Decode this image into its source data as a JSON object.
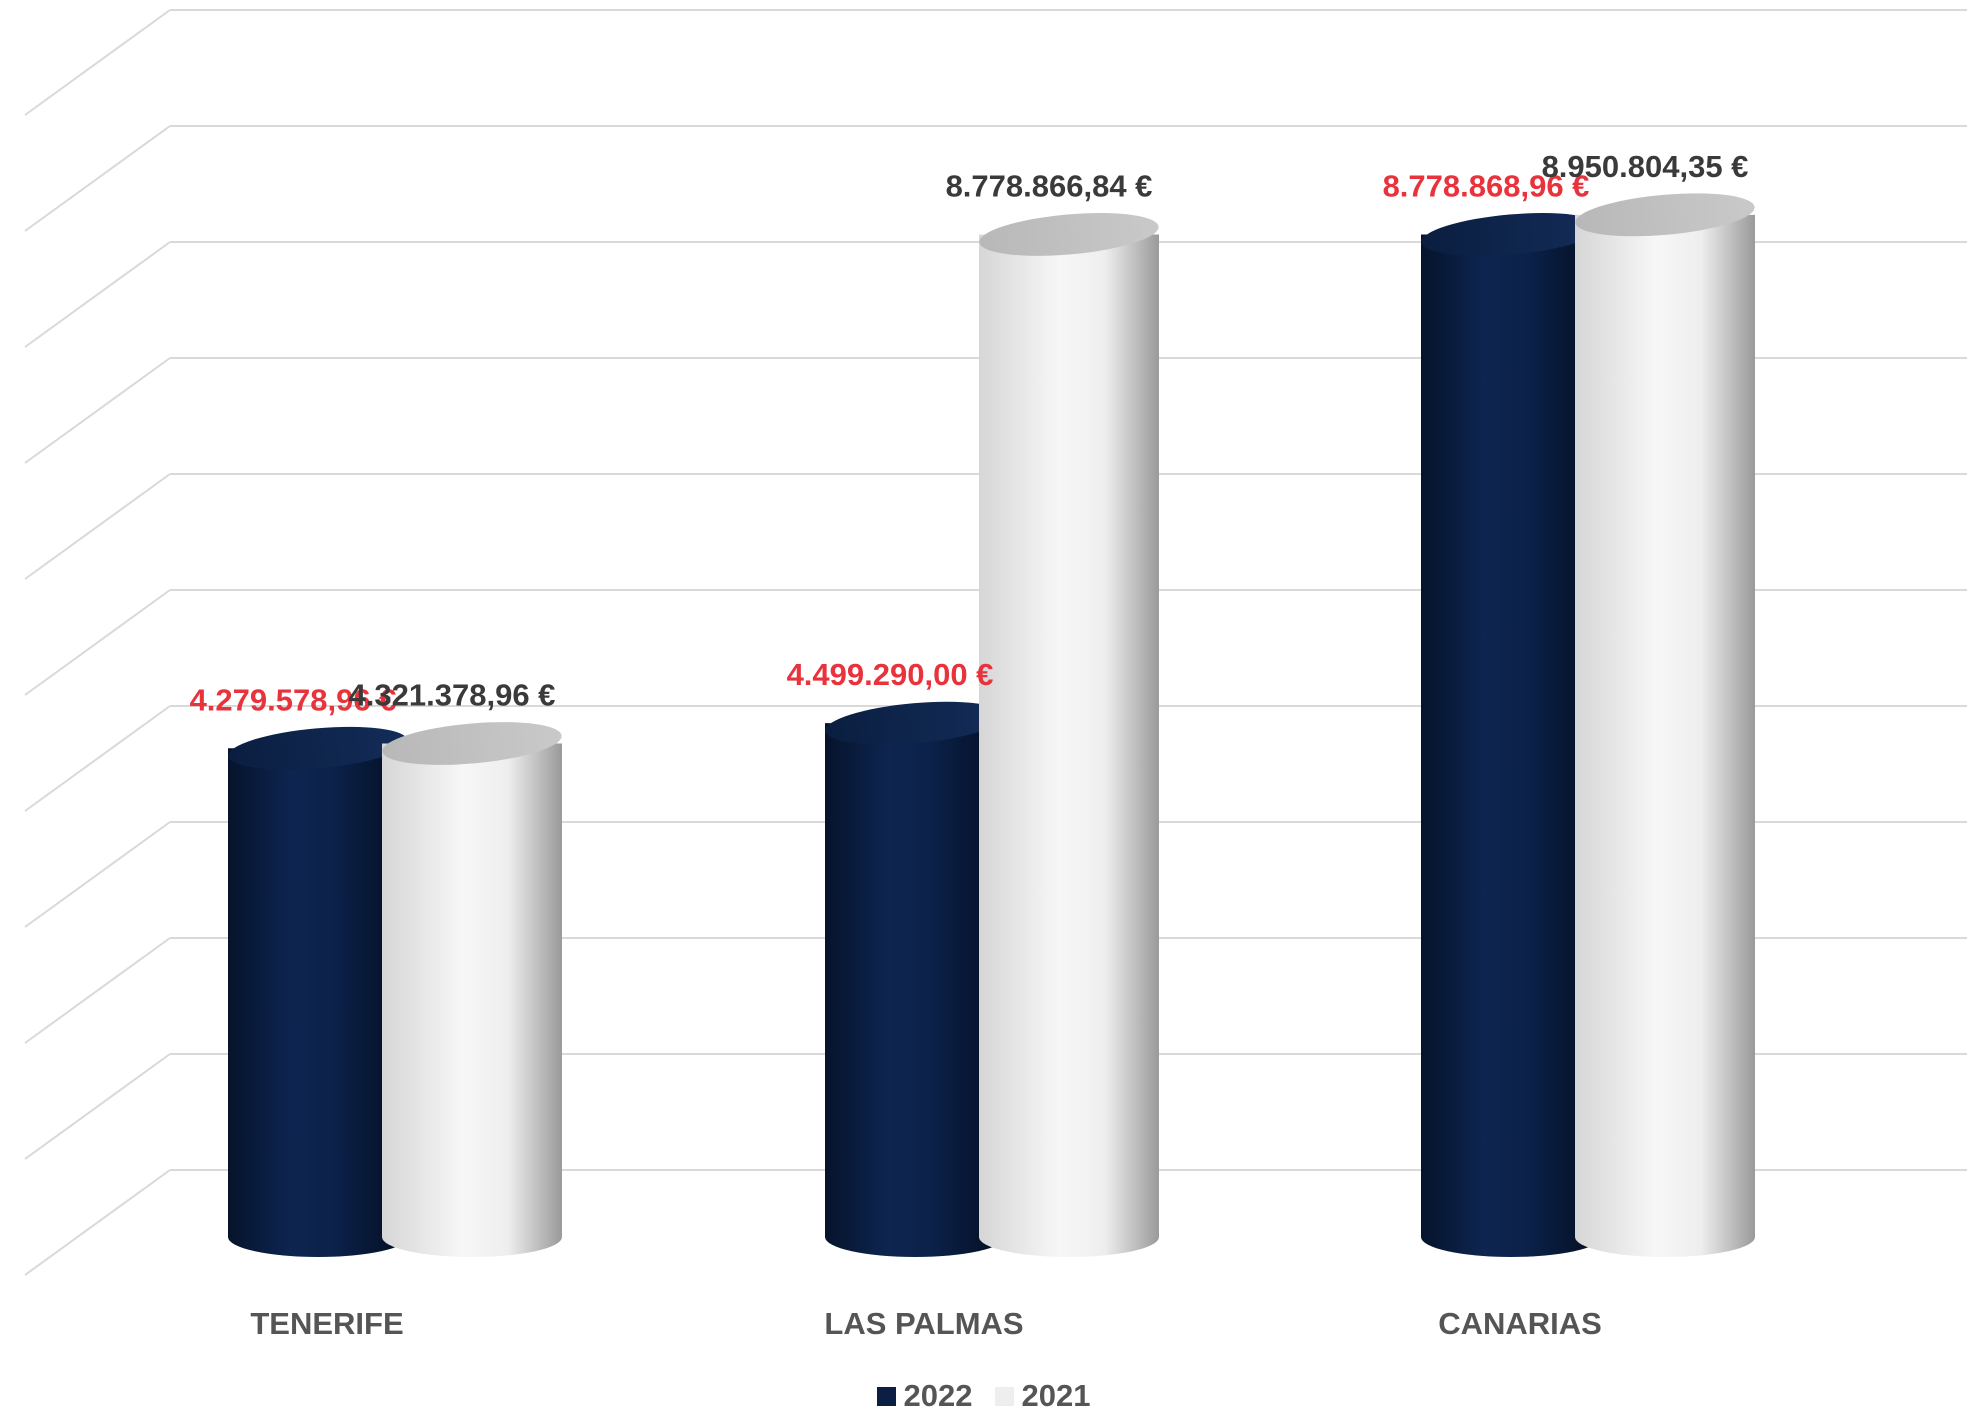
{
  "chart_data": {
    "type": "bar",
    "categories": [
      "TENERIFE",
      "LAS PALMAS",
      "CANARIAS"
    ],
    "series": [
      {
        "name": "2022",
        "color": "#0b1f44",
        "label_color": "#e8323c",
        "values": [
          4279578.96,
          4499290.0,
          8778868.96
        ],
        "labels": [
          "4.279.578,96 €",
          "4.499.290,00 €",
          "8.778.868,96 €"
        ]
      },
      {
        "name": "2021",
        "color": "#eeeeee",
        "label_color": "#3a3a3a",
        "values": [
          4321378.96,
          8778866.84,
          8950804.35
        ],
        "labels": [
          "4.321.378,96 €",
          "8.778.866,84 €",
          "8.950.804,35 €"
        ]
      }
    ],
    "ylim": [
      0,
      10000000
    ],
    "grid": true,
    "legend_position": "bottom-center",
    "style": "3d-cylinder"
  }
}
